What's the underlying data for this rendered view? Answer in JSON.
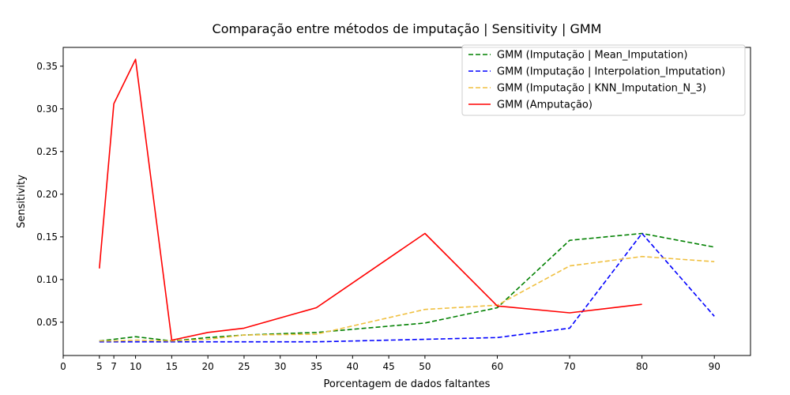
{
  "chart_data": {
    "type": "line",
    "title": "Comparação entre métodos de imputação | Sensitivity | GMM",
    "xlabel": "Porcentagem de dados faltantes",
    "ylabel": "Sensitivity",
    "xlim": [
      0,
      95
    ],
    "ylim": [
      0.011,
      0.372
    ],
    "x_ticks": [
      0,
      5,
      7,
      10,
      15,
      20,
      25,
      30,
      35,
      40,
      45,
      50,
      60,
      70,
      80,
      90
    ],
    "y_ticks": [
      0.05,
      0.1,
      0.15,
      0.2,
      0.25,
      0.3,
      0.35
    ],
    "y_tick_labels": [
      "0.05",
      "0.10",
      "0.15",
      "0.20",
      "0.25",
      "0.30",
      "0.35"
    ],
    "grid": false,
    "legend_position": "top-right",
    "series": [
      {
        "name": "GMM (Imputação | Mean_Imputation)",
        "color": "#008000",
        "style": "dashed",
        "x": [
          5,
          7,
          10,
          15,
          20,
          25,
          35,
          50,
          60,
          70,
          80,
          90
        ],
        "y": [
          0.028,
          0.03,
          0.033,
          0.028,
          0.032,
          0.035,
          0.038,
          0.049,
          0.067,
          0.146,
          0.154,
          0.138
        ]
      },
      {
        "name": "GMM (Imputação | Interpolation_Imputation)",
        "color": "#0000ff",
        "style": "dashed",
        "x": [
          5,
          7,
          10,
          15,
          20,
          25,
          35,
          50,
          60,
          70,
          80,
          90
        ],
        "y": [
          0.027,
          0.027,
          0.027,
          0.027,
          0.027,
          0.027,
          0.027,
          0.03,
          0.032,
          0.043,
          0.154,
          0.057
        ]
      },
      {
        "name": "GMM (Imputação | KNN_Imputation_N_3)",
        "color": "#f0c040",
        "style": "dashed",
        "x": [
          5,
          7,
          10,
          15,
          20,
          25,
          35,
          50,
          60,
          70,
          80,
          90
        ],
        "y": [
          0.028,
          0.028,
          0.029,
          0.028,
          0.03,
          0.035,
          0.036,
          0.065,
          0.07,
          0.116,
          0.127,
          0.121
        ]
      },
      {
        "name": "GMM (Amputação)",
        "color": "#ff0000",
        "style": "solid",
        "x": [
          5,
          7,
          10,
          15,
          20,
          25,
          35,
          50,
          60,
          70,
          80
        ],
        "y": [
          0.113,
          0.306,
          0.358,
          0.029,
          0.038,
          0.043,
          0.067,
          0.154,
          0.069,
          0.061,
          0.071
        ]
      }
    ]
  }
}
